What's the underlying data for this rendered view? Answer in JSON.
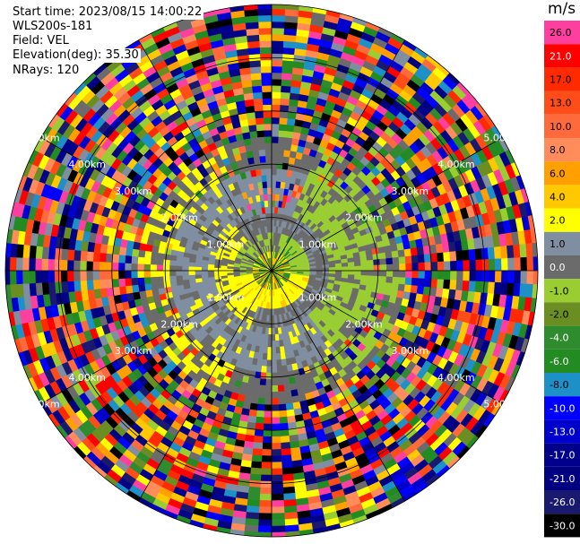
{
  "header": {
    "start_time": "Start time: 2023/08/15 14:00:22",
    "station": "WLS200s-181",
    "field": "Field: VEL",
    "elevation": "Elevation(deg): 35.30",
    "nrays": "NRays: 120"
  },
  "colorbar": {
    "unit": "m/s",
    "levels": [
      {
        "label": "26.0",
        "color": "#ff3fa0"
      },
      {
        "label": "21.0",
        "color": "#ff0000"
      },
      {
        "label": "17.0",
        "color": "#ff2a00"
      },
      {
        "label": "13.0",
        "color": "#ff4d1a"
      },
      {
        "label": "10.0",
        "color": "#ff6a3c"
      },
      {
        "label": "8.0",
        "color": "#ff8c5a"
      },
      {
        "label": "6.0",
        "color": "#ffa000"
      },
      {
        "label": "4.0",
        "color": "#ffc800"
      },
      {
        "label": "2.0",
        "color": "#ffff00"
      },
      {
        "label": "1.0",
        "color": "#7f8ea0"
      },
      {
        "label": "0.0",
        "color": "#6b6b6b"
      },
      {
        "label": "-1.0",
        "color": "#9acd32"
      },
      {
        "label": "-2.0",
        "color": "#6b8e23"
      },
      {
        "label": "-4.0",
        "color": "#2e8b2e"
      },
      {
        "label": "-6.0",
        "color": "#228b22"
      },
      {
        "label": "-8.0",
        "color": "#1e90c8"
      },
      {
        "label": "-10.0",
        "color": "#0000ff"
      },
      {
        "label": "-13.0",
        "color": "#0000cd"
      },
      {
        "label": "-17.0",
        "color": "#00008b"
      },
      {
        "label": "-21.0",
        "color": "#000080"
      },
      {
        "label": "-26.0",
        "color": "#191970"
      },
      {
        "label": "-30.0",
        "color": "#000000"
      }
    ]
  },
  "chart_data": {
    "type": "heatmap",
    "projection": "polar-ppi",
    "field": "VEL",
    "nrays": 120,
    "max_range_km": 5.0,
    "range_rings_km": [
      1.0,
      2.0,
      3.0,
      4.0,
      5.0
    ],
    "ring_labels": [
      "1.00km",
      "2.00km",
      "3.00km",
      "4.00km",
      "5.00km"
    ],
    "spokes_deg": [
      0,
      30,
      60,
      90,
      120,
      150,
      180,
      210,
      240,
      270,
      300,
      330
    ],
    "notes_values": "velocity in m/s; near center mostly 0 to 2 m/s (grey/yellow), green -1 to -2 m/s on east side, noise beyond ~2.5 km"
  }
}
